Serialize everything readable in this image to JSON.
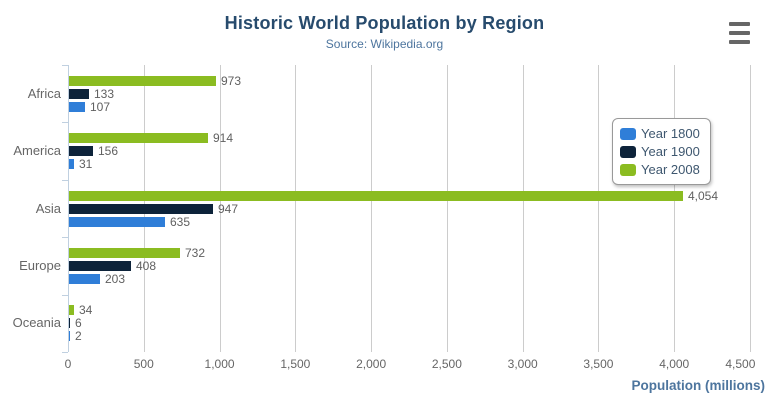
{
  "chart_data": {
    "type": "bar",
    "orientation": "horizontal",
    "title": "Historic World Population by Region",
    "subtitle": "Source: Wikipedia.org",
    "categories": [
      "Africa",
      "America",
      "Asia",
      "Europe",
      "Oceania"
    ],
    "series": [
      {
        "name": "Year 1800",
        "color": "#2f7ed8",
        "values": [
          107,
          31,
          635,
          203,
          2
        ],
        "labels": [
          "107",
          "31",
          "635",
          "203",
          "2"
        ]
      },
      {
        "name": "Year 1900",
        "color": "#0d233a",
        "values": [
          133,
          156,
          947,
          408,
          6
        ],
        "labels": [
          "133",
          "156",
          "947",
          "408",
          "6"
        ]
      },
      {
        "name": "Year 2008",
        "color": "#8bbc21",
        "values": [
          973,
          914,
          4054,
          732,
          34
        ],
        "labels": [
          "973",
          "914",
          "4,054",
          "732",
          "34"
        ]
      }
    ],
    "series_display_order_top_to_bottom": [
      2,
      1,
      0
    ],
    "xlabel": "Population (millions)",
    "xlim": [
      0,
      4500
    ],
    "x_ticks": [
      {
        "value": 0,
        "label": "0"
      },
      {
        "value": 500,
        "label": "500"
      },
      {
        "value": 1000,
        "label": "1,000"
      },
      {
        "value": 1500,
        "label": "1,500"
      },
      {
        "value": 2000,
        "label": "2,000"
      },
      {
        "value": 2500,
        "label": "2,500"
      },
      {
        "value": 3000,
        "label": "3,000"
      },
      {
        "value": 3500,
        "label": "3,500"
      },
      {
        "value": 4000,
        "label": "4,000"
      },
      {
        "value": 4500,
        "label": "4,500"
      }
    ],
    "legend": {
      "position": "right",
      "items": [
        "Year 1800",
        "Year 1900",
        "Year 2008"
      ]
    },
    "grid": true
  },
  "menu": {
    "icon": "hamburger-icon"
  },
  "colors": {
    "title": "#274b6d",
    "subtitle": "#4d759e",
    "axis_title": "#4d759e",
    "axis_labels": "#666666",
    "data_labels": "#606060",
    "gridline": "#cccccc",
    "category_axis_line": "#c0d0e0",
    "legend_text": "#3e576f",
    "menu_icon": "#666666"
  }
}
